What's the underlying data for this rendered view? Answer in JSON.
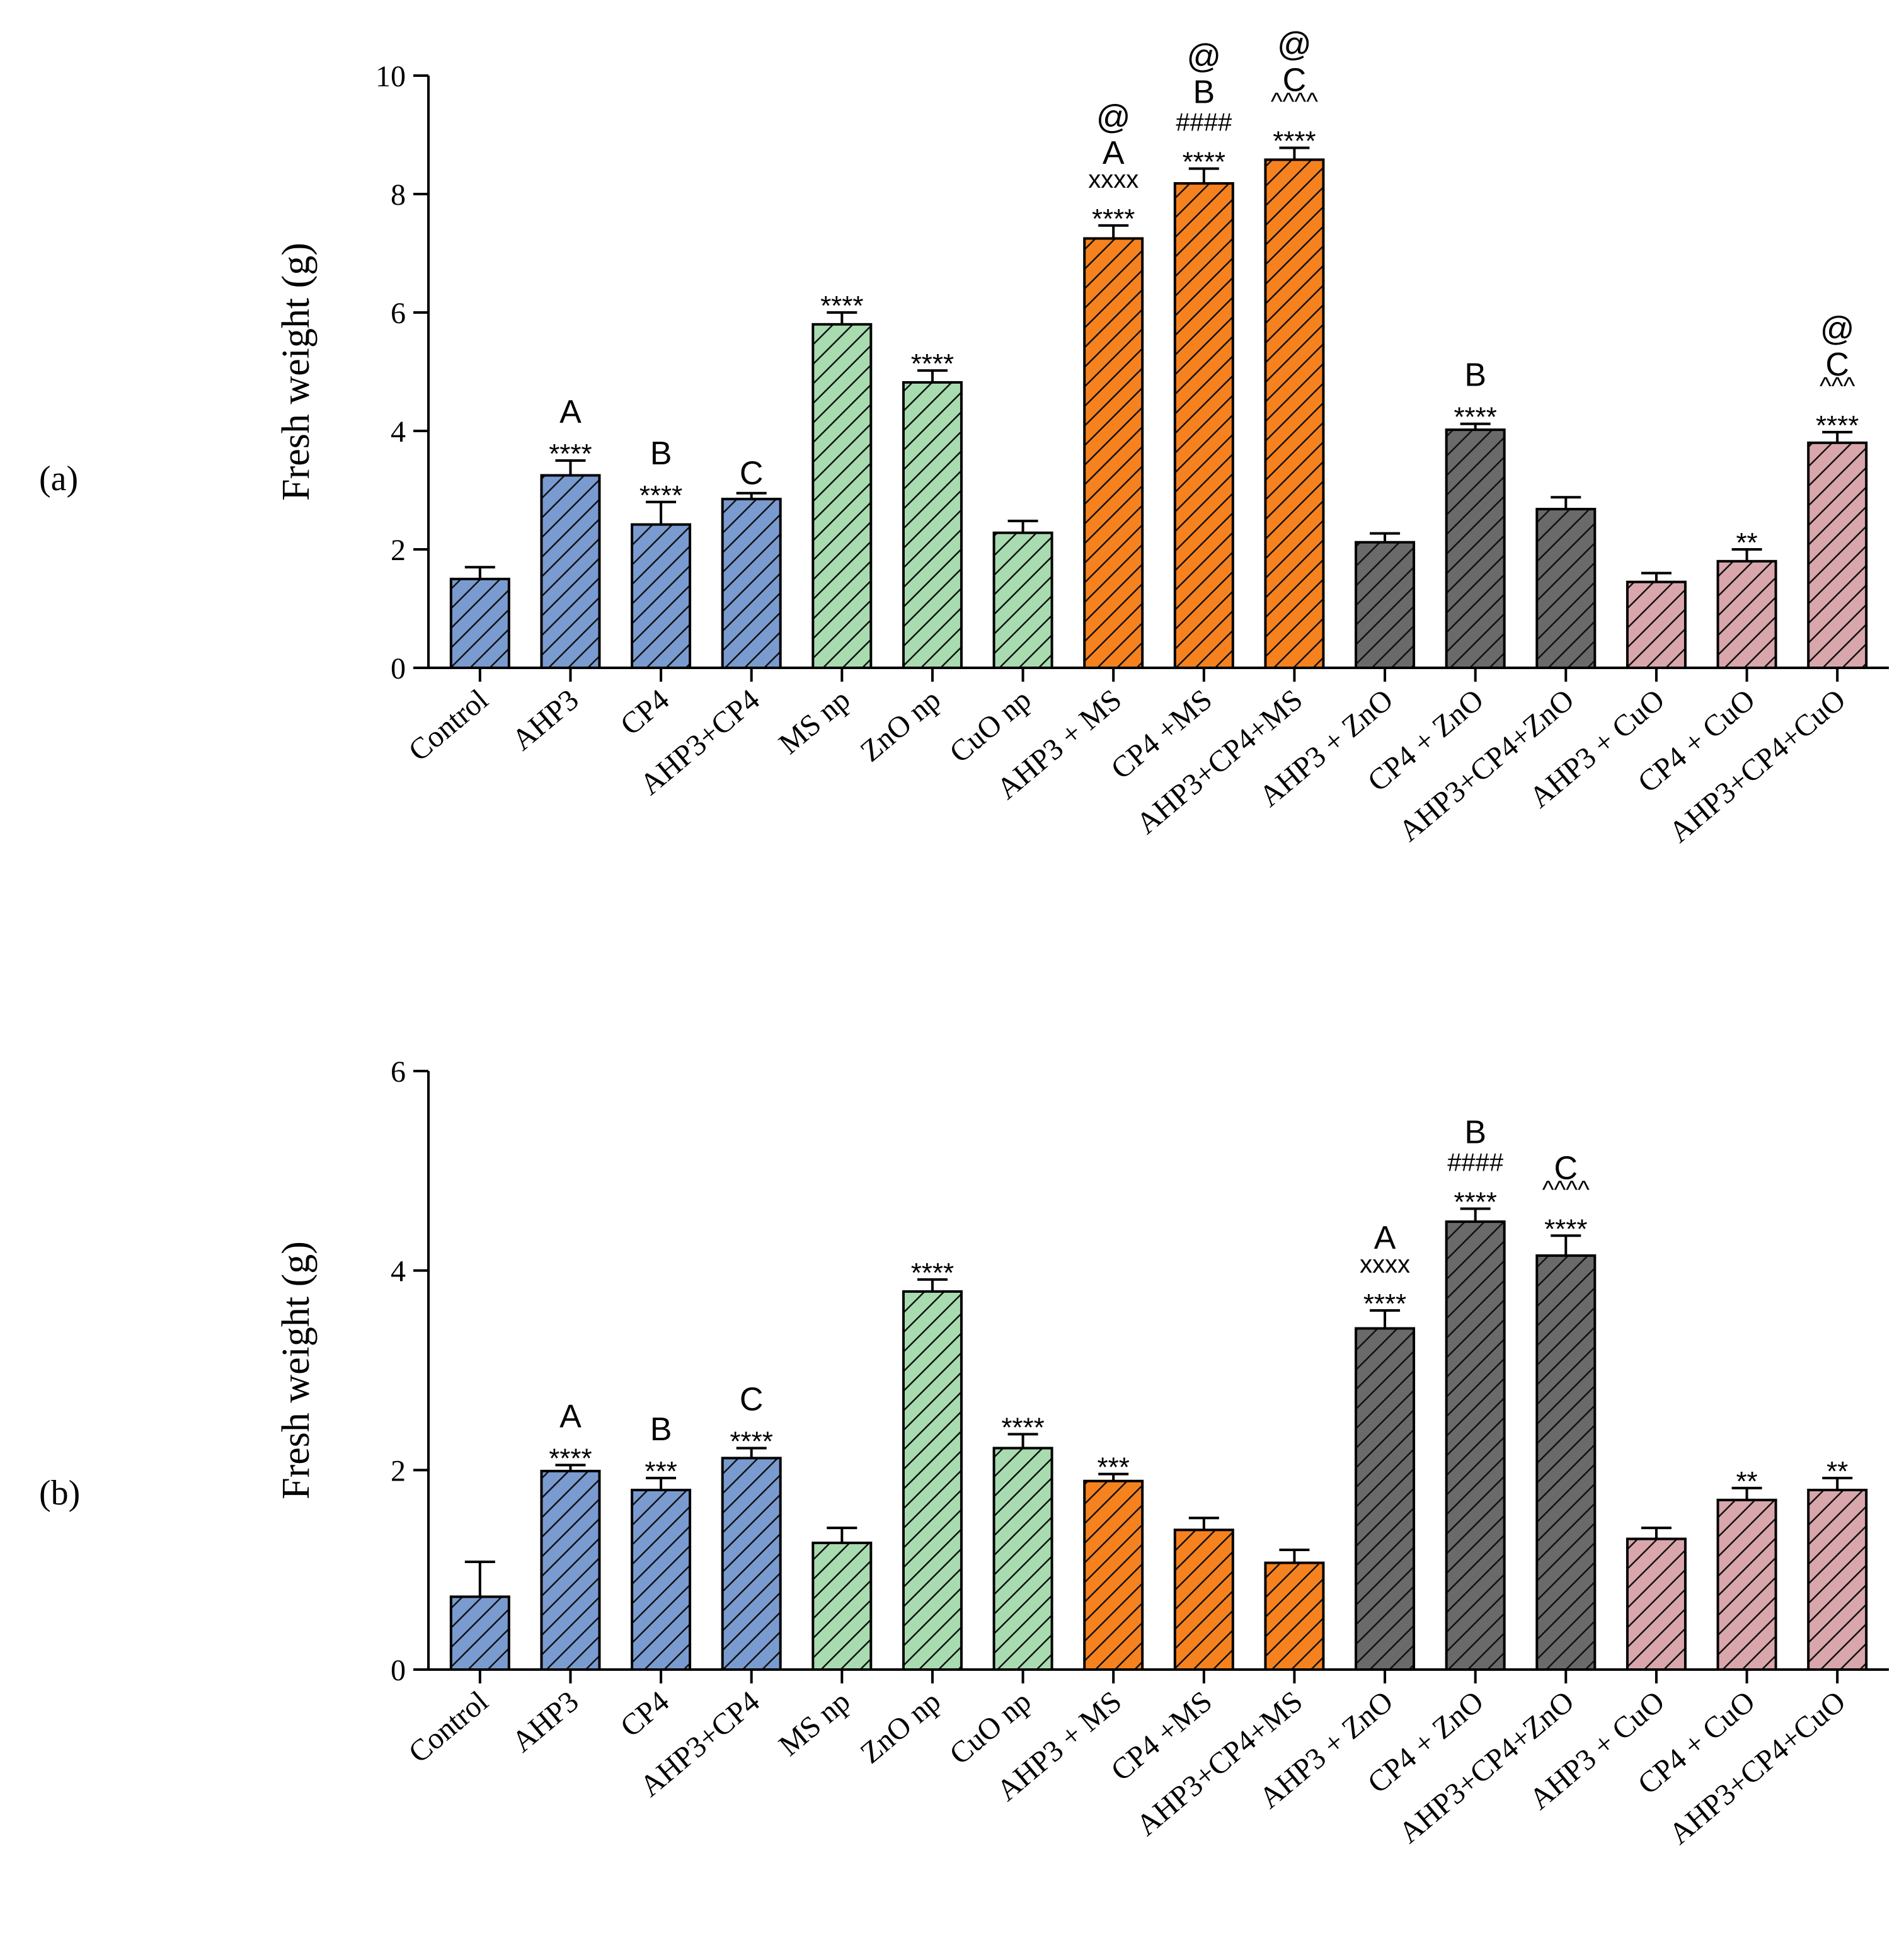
{
  "chart_data": [
    {
      "type": "bar",
      "panel_label": "(a)",
      "ylabel": "Fresh weight (g)",
      "ylim": [
        0,
        10
      ],
      "yticks": [
        0,
        2,
        4,
        6,
        8,
        10
      ],
      "categories": [
        "Control",
        "AHP3",
        "CP4",
        "AHP3+CP4",
        "MS np",
        "ZnO np",
        "CuO np",
        "AHP3 + MS",
        "CP4 +MS",
        "AHP3+CP4+MS",
        "AHP3 + ZnO",
        "CP4 + ZnO",
        "AHP3+CP4+ZnO",
        "AHP3 + CuO",
        "CP4 + CuO",
        "AHP3+CP4+CuO"
      ],
      "values": [
        1.5,
        3.25,
        2.42,
        2.85,
        5.8,
        4.82,
        2.28,
        7.25,
        8.18,
        8.58,
        2.12,
        4.02,
        2.68,
        1.45,
        1.8,
        3.8
      ],
      "errors": [
        0.2,
        0.25,
        0.38,
        0.1,
        0.2,
        0.2,
        0.2,
        0.22,
        0.25,
        0.2,
        0.15,
        0.1,
        0.2,
        0.15,
        0.2,
        0.18
      ],
      "colors": [
        "#7a9bd0",
        "#7a9bd0",
        "#7a9bd0",
        "#7a9bd0",
        "#a8dcb0",
        "#a8dcb0",
        "#a8dcb0",
        "#f6821f",
        "#f6821f",
        "#f6821f",
        "#6a6a6a",
        "#6a6a6a",
        "#6a6a6a",
        "#d9a6ac",
        "#d9a6ac",
        "#d9a6ac"
      ],
      "annotations": [
        [],
        [
          "****",
          "A"
        ],
        [
          "****",
          "B"
        ],
        [
          "C"
        ],
        [
          "****"
        ],
        [
          "****"
        ],
        [],
        [
          "****",
          "xxxx",
          "A",
          "@"
        ],
        [
          "****",
          "####",
          "B",
          "@"
        ],
        [
          "****",
          "^^^^",
          "C",
          "@"
        ],
        [],
        [
          "****",
          "B"
        ],
        [],
        [],
        [
          "**"
        ],
        [
          "****",
          "^^^",
          "C",
          "@"
        ]
      ]
    },
    {
      "type": "bar",
      "panel_label": "(b)",
      "ylabel": "Fresh weight (g)",
      "ylim": [
        0,
        6
      ],
      "yticks": [
        0,
        2,
        4,
        6
      ],
      "categories": [
        "Control",
        "AHP3",
        "CP4",
        "AHP3+CP4",
        "MS np",
        "ZnO np",
        "CuO np",
        "AHP3 + MS",
        "CP4 +MS",
        "AHP3+CP4+MS",
        "AHP3 + ZnO",
        "CP4 + ZnO",
        "AHP3+CP4+ZnO",
        "AHP3 + CuO",
        "CP4 + CuO",
        "AHP3+CP4+CuO"
      ],
      "values": [
        0.73,
        1.99,
        1.8,
        2.12,
        1.27,
        3.79,
        2.22,
        1.89,
        1.4,
        1.07,
        3.42,
        4.49,
        4.15,
        1.31,
        1.7,
        1.8
      ],
      "errors": [
        0.35,
        0.06,
        0.12,
        0.1,
        0.15,
        0.12,
        0.14,
        0.07,
        0.12,
        0.13,
        0.18,
        0.13,
        0.2,
        0.11,
        0.12,
        0.12
      ],
      "colors": [
        "#7a9bd0",
        "#7a9bd0",
        "#7a9bd0",
        "#7a9bd0",
        "#a8dcb0",
        "#a8dcb0",
        "#a8dcb0",
        "#f6821f",
        "#f6821f",
        "#f6821f",
        "#6a6a6a",
        "#6a6a6a",
        "#6a6a6a",
        "#d9a6ac",
        "#d9a6ac",
        "#d9a6ac"
      ],
      "annotations": [
        [],
        [
          "****",
          "A"
        ],
        [
          "***",
          "B"
        ],
        [
          "****",
          "C"
        ],
        [],
        [
          "****"
        ],
        [
          "****"
        ],
        [
          "***"
        ],
        [],
        [],
        [
          "****",
          "xxxx",
          "A"
        ],
        [
          "****",
          "####",
          "B"
        ],
        [
          "****",
          "^^^^",
          "C"
        ],
        [],
        [
          "**"
        ],
        [
          "**"
        ]
      ]
    }
  ]
}
